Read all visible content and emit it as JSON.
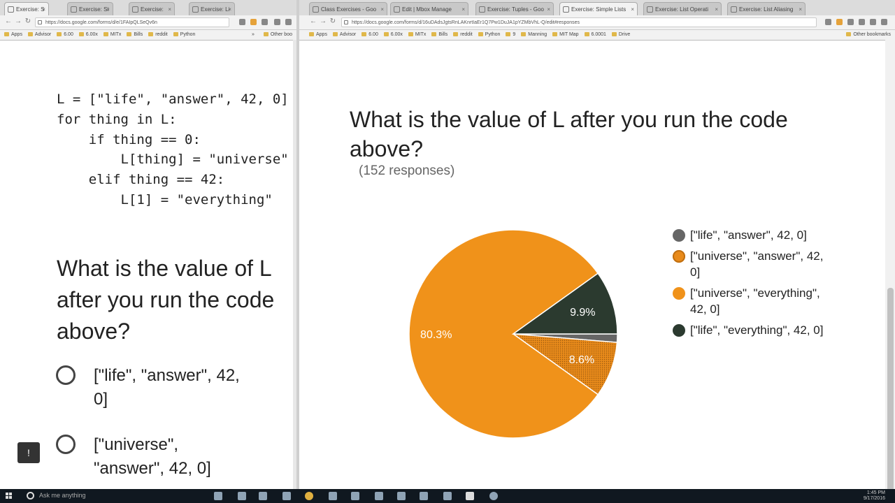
{
  "left_browser": {
    "tabs": [
      "Exercise: S",
      "Exercise: Si",
      "Exercise: ",
      "Exercise: Li"
    ],
    "address": "https://docs.google.com/forms/d/e/1FAIpQLSeQv6n",
    "bookmarks": [
      "Apps",
      "Advisor",
      "6.00",
      "6.00x",
      "MITx",
      "Bills",
      "reddit",
      "Python"
    ],
    "bookmarks_overflow": "»",
    "bookmarks_other": "Other boo"
  },
  "right_browser": {
    "tabs": [
      "Class Exercises - Goo",
      "Edit | Mbox Manage",
      "Exercise: Tuples - Goo",
      "Exercise: Simple Lists",
      "Exercise: List Operati",
      "Exercise: List Aliasing"
    ],
    "address": "https://docs.google.com/forms/d/16uDAdsJgtsRnLAKnrtIaEr1Q7Pw1DuJA1pYZMbVhL-Q/edit#responses",
    "bookmarks": [
      "Apps",
      "Advisor",
      "6.00",
      "6.00x",
      "MITx",
      "Bills",
      "reddit",
      "Python",
      "9",
      "Manning",
      "MIT Map",
      "6.0001",
      "Drive"
    ],
    "bookmarks_other": "Other bookmarks"
  },
  "form": {
    "code_lines": [
      "L = [\"life\", \"answer\", 42, 0]",
      "for thing in L:",
      "    if thing == 0:",
      "        L[thing] = \"universe\"",
      "    elif thing == 42:",
      "        L[1] = \"everything\""
    ],
    "question": "What is the value of L after you run the code above?",
    "options": [
      "[\"life\", \"answer\", 42, 0]",
      "[\"universe\", \"answer\", 42, 0]"
    ]
  },
  "responses": {
    "question": "What is the value of L after you run the code above?",
    "count_label": "(152 responses)"
  },
  "chart_data": {
    "type": "pie",
    "title": "",
    "slices": [
      {
        "label": "[\"life\", \"answer\", 42, 0]",
        "value": 1.3,
        "color": "#666666",
        "data_label": ""
      },
      {
        "label": "[\"universe\", \"answer\", 42, 0]",
        "value": 8.6,
        "color": "#e88a1a",
        "data_label": "8.6%"
      },
      {
        "label": "[\"universe\", \"everything\", 42, 0]",
        "value": 80.3,
        "color": "#f0921a",
        "data_label": "80.3%"
      },
      {
        "label": "[\"life\", \"everything\", 42, 0]",
        "value": 9.9,
        "color": "#2b3a2f",
        "data_label": "9.9%"
      }
    ],
    "legend_placement": "right"
  },
  "taskbar": {
    "search_placeholder": "Ask me anything",
    "clock_time": "1:45 PM",
    "clock_date": "9/17/2016"
  }
}
